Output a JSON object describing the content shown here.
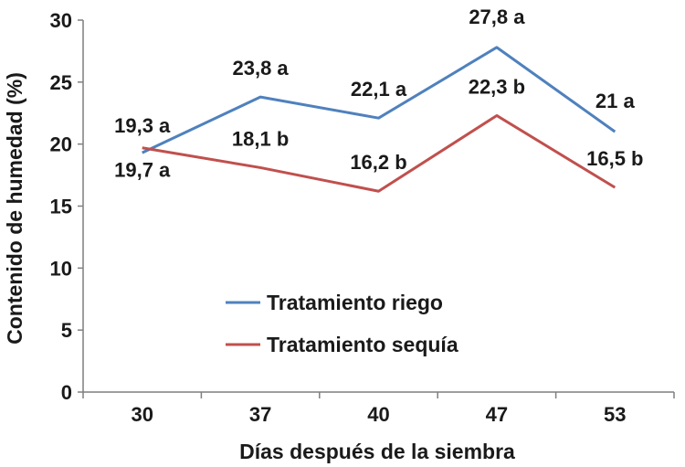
{
  "chart_data": {
    "type": "line",
    "xlabel": "Días después de la siembra",
    "ylabel": "Contenido de humedad (%)",
    "categories": [
      "30",
      "37",
      "40",
      "47",
      "53"
    ],
    "ylim": [
      0,
      30
    ],
    "yticks": [
      "0",
      "5",
      "10",
      "15",
      "20",
      "25",
      "30"
    ],
    "grid": false,
    "legend_position": "center-left",
    "series": [
      {
        "name": "Tratamiento riego",
        "color": "#4F81BD",
        "values": [
          19.3,
          23.8,
          22.1,
          27.8,
          21.0
        ],
        "labels": [
          "19,3 a",
          "23,8 a",
          "22,1 a",
          "27,8 a",
          "21 a"
        ]
      },
      {
        "name": "Tratamiento sequía",
        "color": "#C0504D",
        "values": [
          19.7,
          18.1,
          16.2,
          22.3,
          16.5
        ],
        "labels": [
          "19,7 a",
          "18,1 b",
          "16,2 b",
          "22,3 b",
          "16,5 b"
        ]
      }
    ]
  }
}
